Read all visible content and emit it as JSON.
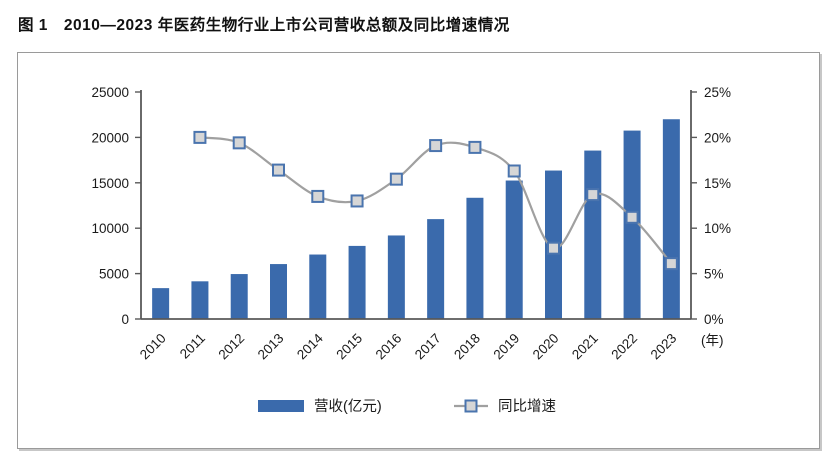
{
  "title": "图 1　2010—2023 年医药生物行业上市公司营收总额及同比增速情况",
  "legend": {
    "revenue_label": "营收(亿元)",
    "growth_label": "同比增速"
  },
  "x_axis_unit_label": "(年)",
  "colors": {
    "bar": "#3a6aac",
    "line": "#a0a0a0",
    "marker_fill": "#d6d6d6",
    "marker_border": "#4a74ae",
    "axis": "#595959",
    "text": "#1a1a1a"
  },
  "chart_data": {
    "type": "bar",
    "subtype": "bar-line-combo",
    "title": "图 1　2010—2023 年医药生物行业上市公司营收总额及同比增速情况",
    "categories": [
      "2010",
      "2011",
      "2012",
      "2013",
      "2014",
      "2015",
      "2016",
      "2017",
      "2018",
      "2019",
      "2020",
      "2021",
      "2022",
      "2023"
    ],
    "series": [
      {
        "name": "营收(亿元)",
        "type": "bar",
        "axis": "left",
        "values": [
          3400,
          4150,
          4950,
          6050,
          7100,
          8050,
          9200,
          11000,
          13350,
          15250,
          16350,
          18550,
          20750,
          22000
        ]
      },
      {
        "name": "同比增速",
        "type": "line",
        "axis": "right",
        "values": [
          null,
          20.0,
          19.4,
          16.4,
          13.5,
          13.0,
          15.4,
          19.1,
          18.9,
          16.3,
          7.8,
          13.7,
          11.2,
          6.1
        ]
      }
    ],
    "left_axis": {
      "min": 0,
      "max": 25000,
      "step": 5000,
      "tick_labels": [
        "0",
        "5000",
        "10000",
        "15000",
        "20000",
        "25000"
      ]
    },
    "right_axis": {
      "min": 0,
      "max": 25,
      "step": 5,
      "tick_labels": [
        "0%",
        "5%",
        "10%",
        "15%",
        "20%",
        "25%"
      ]
    },
    "x_axis_unit": "(年)",
    "grid": false,
    "legend_position": "bottom"
  }
}
